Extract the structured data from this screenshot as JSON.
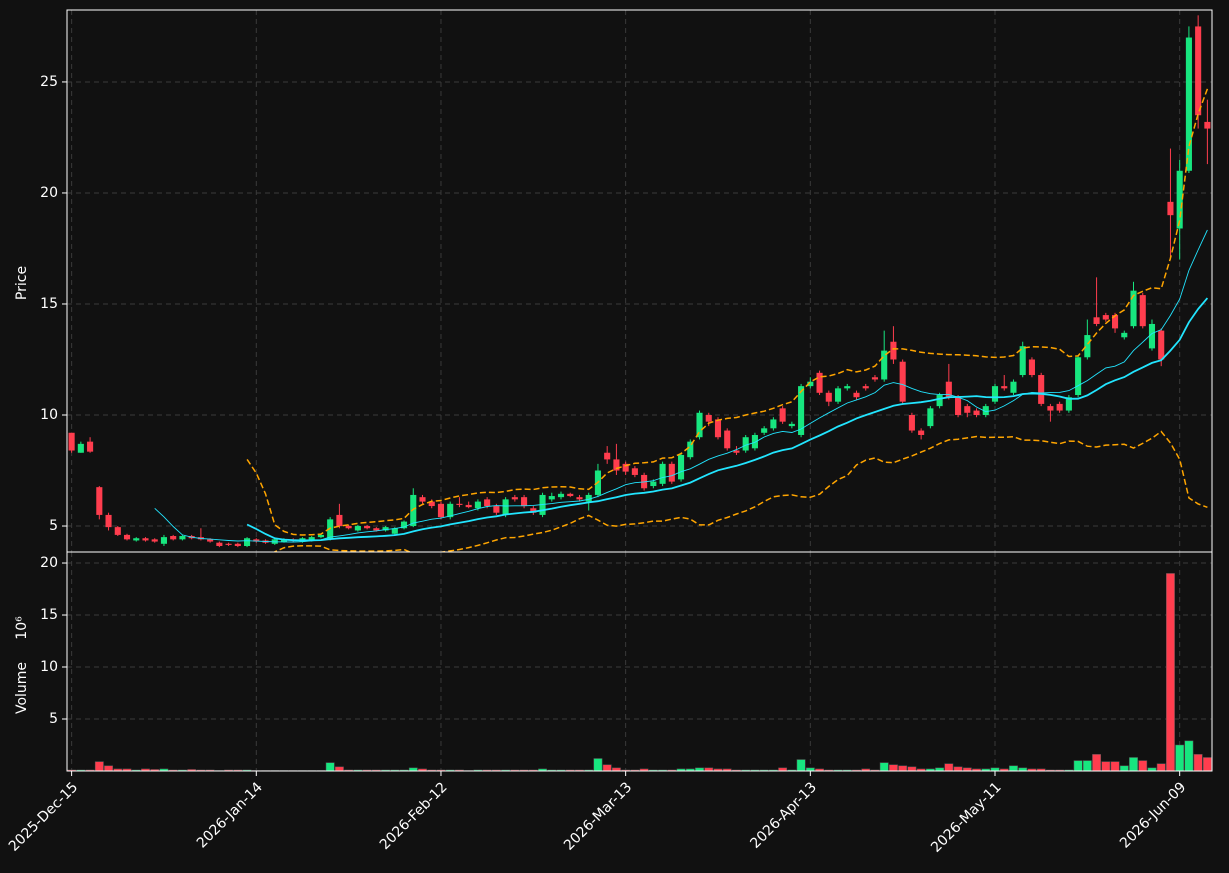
{
  "chart_data": {
    "type": "candlestick",
    "ylabel": "Price",
    "volume_ylabel": "Volume",
    "volume_unit": "10⁶",
    "up_color": "#17e67f",
    "down_color": "#ff3d4e",
    "mav_color": "#22e5ff",
    "band_color": "#ffa500",
    "mav": [
      10,
      20
    ],
    "bollinger": 20,
    "grid": true,
    "categories": [
      "2025-Dec-15",
      null,
      null,
      null,
      null,
      null,
      null,
      null,
      null,
      null,
      null,
      null,
      null,
      null,
      null,
      null,
      null,
      null,
      null,
      null,
      "2026-Jan-14",
      null,
      null,
      null,
      null,
      null,
      null,
      null,
      null,
      null,
      null,
      null,
      null,
      null,
      null,
      null,
      null,
      null,
      null,
      null,
      "2026-Feb-12",
      null,
      null,
      null,
      null,
      null,
      null,
      null,
      null,
      null,
      null,
      null,
      null,
      null,
      null,
      null,
      null,
      null,
      null,
      null,
      "2026-Mar-13",
      null,
      null,
      null,
      null,
      null,
      null,
      null,
      null,
      null,
      null,
      null,
      null,
      null,
      null,
      null,
      null,
      null,
      null,
      null,
      "2026-Apr-13",
      null,
      null,
      null,
      null,
      null,
      null,
      null,
      null,
      null,
      null,
      null,
      null,
      null,
      null,
      null,
      null,
      null,
      null,
      null,
      "2026-May-11",
      null,
      null,
      null,
      null,
      null,
      null,
      null,
      null,
      null,
      null,
      null,
      null,
      null,
      null,
      null,
      null,
      null,
      null,
      null,
      "2026-Jun-09",
      null,
      null,
      null
    ],
    "open": [
      9.2,
      8.3,
      8.8,
      6.75,
      5.5,
      4.95,
      4.6,
      4.35,
      4.45,
      4.4,
      4.2,
      4.55,
      4.4,
      4.55,
      4.5,
      4.4,
      4.25,
      4.2,
      4.2,
      4.1,
      4.4,
      4.35,
      4.2,
      4.3,
      4.4,
      4.3,
      4.35,
      4.5,
      4.4,
      5.5,
      5.0,
      4.8,
      5.0,
      4.9,
      4.8,
      4.65,
      4.9,
      5.0,
      6.3,
      6.1,
      6.0,
      5.4,
      6.0,
      5.95,
      5.8,
      6.2,
      5.9,
      5.5,
      6.3,
      6.3,
      5.8,
      5.5,
      6.2,
      6.3,
      6.45,
      6.3,
      6.1,
      6.4,
      8.3,
      8.0,
      7.8,
      7.6,
      7.3,
      6.8,
      6.9,
      7.8,
      7.1,
      8.1,
      9.0,
      10.0,
      9.8,
      9.3,
      8.4,
      8.4,
      8.5,
      9.2,
      9.4,
      10.3,
      9.5,
      9.1,
      11.3,
      11.9,
      11.0,
      10.6,
      11.2,
      11.0,
      11.3,
      11.7,
      11.6,
      13.3,
      12.4,
      10.0,
      9.3,
      9.5,
      10.4,
      11.5,
      10.8,
      10.4,
      10.2,
      10.0,
      10.6,
      11.3,
      11.0,
      11.8,
      12.5,
      11.8,
      10.4,
      10.5,
      10.2,
      10.9,
      12.6,
      14.4,
      14.5,
      14.5,
      13.5,
      14.0,
      15.4,
      13.0,
      13.8,
      19.6,
      18.4,
      21.0,
      27.5,
      23.2
    ],
    "high": [
      9.2,
      8.8,
      9.0,
      6.8,
      5.6,
      5.0,
      4.65,
      4.5,
      4.5,
      4.45,
      4.6,
      4.6,
      4.6,
      4.6,
      4.9,
      4.45,
      4.3,
      4.25,
      4.25,
      4.5,
      4.45,
      4.4,
      4.45,
      4.45,
      4.45,
      4.5,
      4.55,
      4.65,
      5.4,
      6.0,
      5.05,
      5.05,
      5.05,
      4.95,
      5.0,
      4.95,
      5.25,
      6.7,
      6.4,
      6.2,
      6.1,
      6.1,
      6.3,
      6.1,
      6.2,
      6.3,
      6.0,
      6.3,
      6.4,
      6.4,
      5.9,
      6.5,
      6.5,
      6.55,
      6.5,
      6.4,
      6.5,
      7.8,
      8.6,
      8.7,
      7.9,
      7.7,
      7.4,
      7.1,
      7.9,
      7.9,
      8.3,
      8.9,
      10.2,
      10.1,
      9.9,
      9.4,
      8.6,
      9.1,
      9.2,
      9.5,
      9.9,
      10.4,
      9.7,
      11.4,
      11.7,
      12.0,
      11.1,
      11.3,
      11.4,
      11.1,
      11.4,
      11.8,
      13.8,
      14.0,
      12.5,
      10.1,
      9.4,
      10.4,
      11.0,
      12.3,
      10.9,
      10.5,
      10.3,
      10.5,
      11.4,
      11.8,
      11.6,
      13.3,
      12.6,
      11.9,
      10.5,
      10.6,
      10.9,
      12.7,
      14.3,
      16.2,
      14.6,
      14.6,
      13.8,
      16.0,
      15.5,
      14.3,
      13.9,
      22.0,
      21.5,
      27.5,
      28.0,
      24.2
    ],
    "low": [
      8.3,
      8.3,
      8.3,
      5.3,
      4.8,
      4.55,
      4.35,
      4.3,
      4.3,
      4.25,
      4.1,
      4.35,
      4.35,
      4.4,
      4.35,
      4.25,
      4.05,
      4.1,
      4.05,
      4.05,
      4.25,
      4.2,
      4.15,
      4.25,
      4.3,
      4.25,
      4.3,
      4.45,
      4.35,
      4.9,
      4.85,
      4.75,
      4.85,
      4.75,
      4.75,
      4.6,
      4.85,
      4.95,
      6.0,
      5.8,
      5.3,
      5.3,
      5.85,
      5.8,
      5.7,
      5.8,
      5.5,
      5.4,
      6.1,
      5.8,
      5.5,
      5.4,
      6.1,
      6.2,
      6.3,
      6.1,
      5.7,
      6.3,
      7.8,
      7.3,
      7.3,
      7.2,
      6.6,
      6.7,
      6.8,
      6.9,
      7.0,
      8.0,
      8.9,
      9.5,
      8.9,
      8.4,
      8.2,
      8.3,
      8.4,
      9.1,
      9.3,
      9.6,
      9.4,
      9.0,
      11.2,
      10.9,
      10.4,
      10.5,
      11.1,
      10.7,
      11.1,
      11.5,
      11.5,
      12.3,
      10.5,
      9.2,
      8.9,
      9.4,
      10.3,
      10.7,
      9.9,
      9.9,
      9.9,
      9.9,
      10.5,
      11.1,
      10.9,
      11.7,
      11.7,
      10.4,
      9.7,
      10.1,
      10.1,
      10.8,
      12.5,
      14.0,
      14.2,
      13.7,
      13.4,
      13.9,
      13.9,
      12.9,
      12.2,
      17.0,
      17.0,
      20.9,
      22.9,
      21.3
    ],
    "close": [
      8.4,
      8.7,
      8.35,
      5.5,
      4.95,
      4.6,
      4.4,
      4.45,
      4.35,
      4.3,
      4.5,
      4.4,
      4.55,
      4.45,
      4.4,
      4.3,
      4.1,
      4.15,
      4.1,
      4.45,
      4.3,
      4.25,
      4.4,
      4.4,
      4.35,
      4.45,
      4.5,
      4.6,
      5.3,
      5.0,
      4.9,
      5.0,
      4.9,
      4.8,
      4.95,
      4.9,
      5.2,
      6.4,
      6.1,
      5.9,
      5.4,
      6.0,
      5.95,
      5.85,
      6.1,
      5.9,
      5.6,
      6.2,
      6.2,
      5.9,
      5.6,
      6.4,
      6.35,
      6.45,
      6.35,
      6.2,
      6.4,
      7.5,
      8.0,
      7.5,
      7.45,
      7.3,
      6.7,
      7.0,
      7.8,
      7.0,
      8.2,
      8.8,
      10.1,
      9.7,
      9.0,
      8.5,
      8.3,
      9.0,
      9.1,
      9.4,
      9.8,
      9.7,
      9.6,
      11.3,
      11.5,
      11.0,
      10.6,
      11.2,
      11.3,
      10.8,
      11.2,
      11.6,
      12.9,
      12.5,
      10.6,
      9.3,
      9.1,
      10.3,
      10.9,
      10.8,
      10.0,
      10.1,
      10.0,
      10.4,
      11.3,
      11.2,
      11.5,
      13.1,
      11.8,
      10.5,
      10.2,
      10.2,
      10.8,
      12.6,
      13.6,
      14.1,
      14.3,
      13.9,
      13.7,
      15.6,
      14.0,
      14.1,
      12.5,
      19.0,
      21.0,
      27.0,
      23.5,
      22.9
    ],
    "volume": [
      0.1,
      0.1,
      0.1,
      0.9,
      0.5,
      0.2,
      0.2,
      0.1,
      0.2,
      0.15,
      0.2,
      0.1,
      0.1,
      0.15,
      0.1,
      0.1,
      0.05,
      0.1,
      0.1,
      0.1,
      0.05,
      0.05,
      0.05,
      0.05,
      0.05,
      0.05,
      0.05,
      0.05,
      0.8,
      0.4,
      0.1,
      0.1,
      0.1,
      0.1,
      0.1,
      0.1,
      0.1,
      0.3,
      0.2,
      0.1,
      0.1,
      0.1,
      0.1,
      0.05,
      0.1,
      0.1,
      0.1,
      0.1,
      0.1,
      0.1,
      0.1,
      0.2,
      0.1,
      0.1,
      0.1,
      0.1,
      0.1,
      1.2,
      0.6,
      0.3,
      0.1,
      0.1,
      0.2,
      0.1,
      0.1,
      0.1,
      0.2,
      0.2,
      0.3,
      0.3,
      0.2,
      0.2,
      0.1,
      0.1,
      0.1,
      0.1,
      0.1,
      0.3,
      0.1,
      1.1,
      0.3,
      0.2,
      0.1,
      0.1,
      0.1,
      0.1,
      0.2,
      0.1,
      0.8,
      0.6,
      0.5,
      0.4,
      0.2,
      0.2,
      0.3,
      0.7,
      0.4,
      0.3,
      0.2,
      0.2,
      0.3,
      0.2,
      0.5,
      0.3,
      0.2,
      0.2,
      0.1,
      0.1,
      0.1,
      1.0,
      1.0,
      1.6,
      0.9,
      0.9,
      0.5,
      1.3,
      1.0,
      0.3,
      0.7,
      19.0,
      2.5,
      2.9,
      1.6,
      1.3
    ],
    "ylim": [
      3.83,
      28.24
    ],
    "yticks": [
      5,
      10,
      15,
      20,
      25
    ],
    "volume_ylim": [
      0,
      21.06
    ],
    "volume_yticks": [
      5,
      10,
      15,
      20
    ]
  }
}
